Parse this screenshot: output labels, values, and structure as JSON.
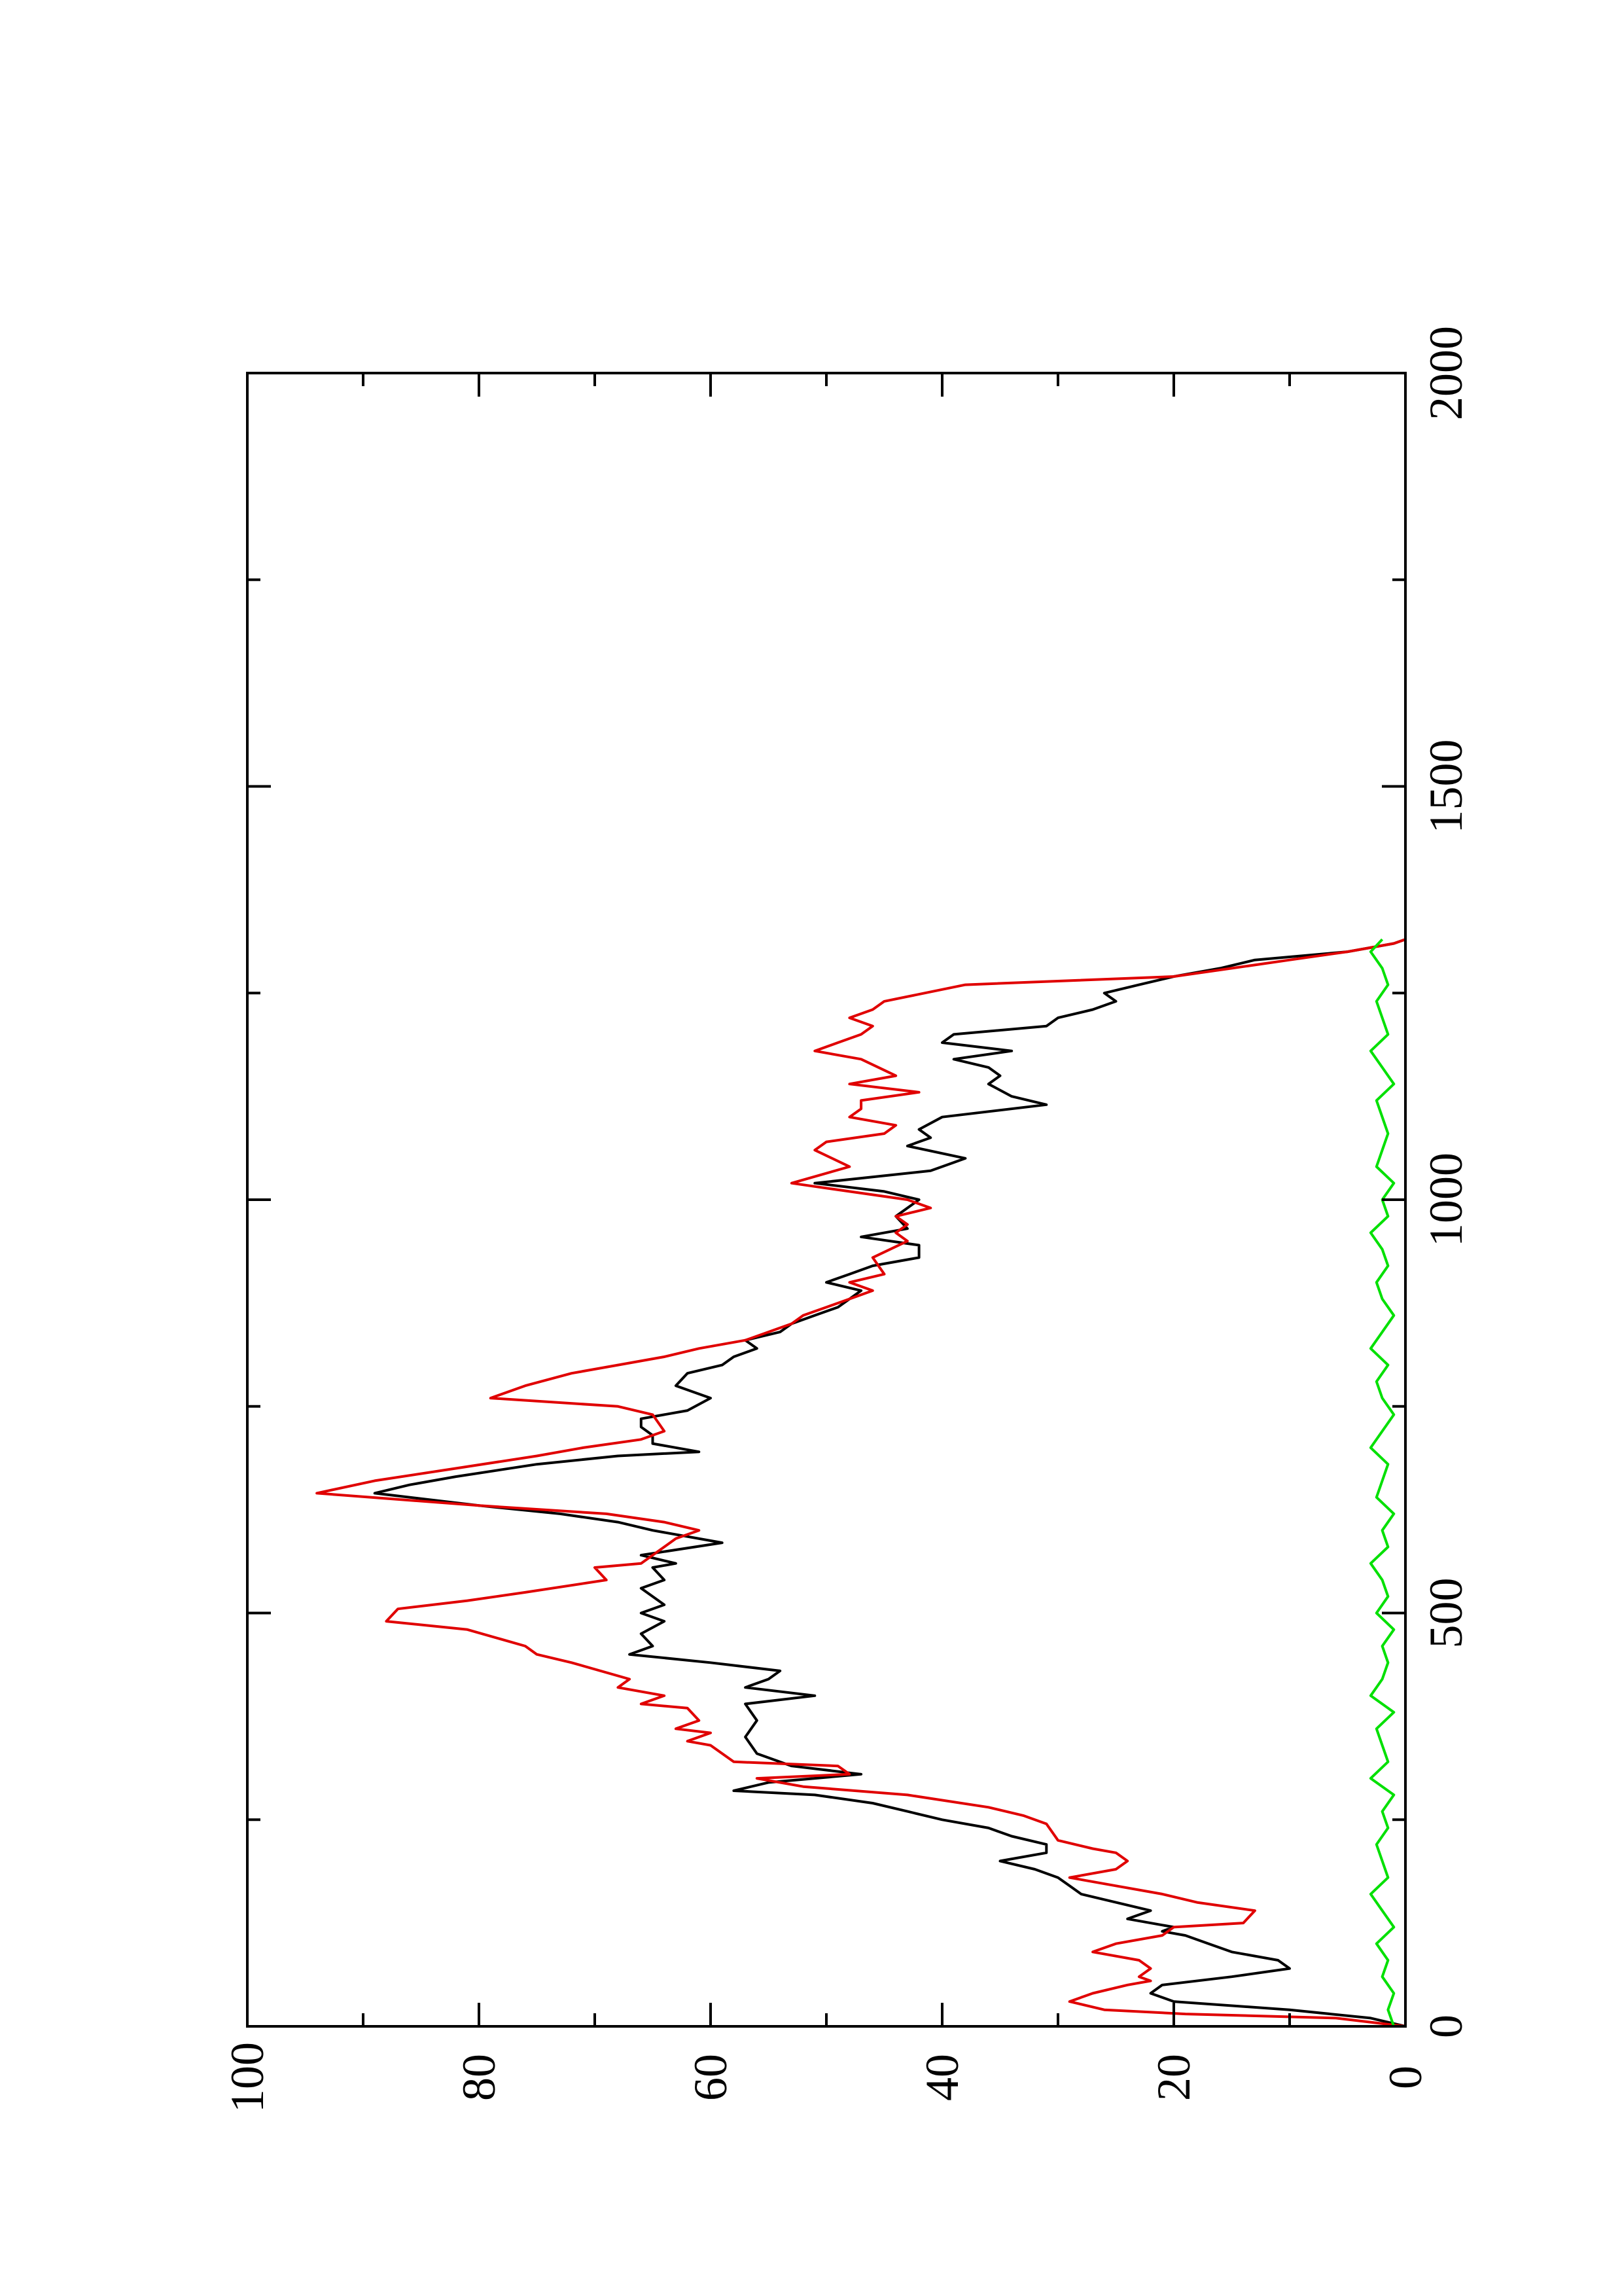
{
  "chart_data": {
    "type": "line",
    "orientation": "rotated-90-ccw",
    "title": "",
    "xlabel": "",
    "ylabel": "",
    "xlim": [
      0,
      2000
    ],
    "ylim": [
      0,
      100
    ],
    "x_ticks": [
      "0",
      "500",
      "1000",
      "1500",
      "2000"
    ],
    "y_ticks": [
      "0",
      "20",
      "40",
      "60",
      "80",
      "100"
    ],
    "grid": false,
    "legend": "none",
    "series": [
      {
        "color": "#000000",
        "points": [
          [
            0,
            0
          ],
          [
            10,
            3
          ],
          [
            20,
            10
          ],
          [
            30,
            20
          ],
          [
            40,
            22
          ],
          [
            50,
            21
          ],
          [
            60,
            15
          ],
          [
            70,
            10
          ],
          [
            80,
            11
          ],
          [
            90,
            15
          ],
          [
            100,
            17
          ],
          [
            110,
            19
          ],
          [
            115,
            21
          ],
          [
            120,
            20
          ],
          [
            130,
            24
          ],
          [
            140,
            22
          ],
          [
            150,
            25
          ],
          [
            160,
            28
          ],
          [
            170,
            29
          ],
          [
            180,
            30
          ],
          [
            190,
            32
          ],
          [
            200,
            35
          ],
          [
            210,
            31
          ],
          [
            220,
            31
          ],
          [
            230,
            34
          ],
          [
            240,
            36
          ],
          [
            250,
            40
          ],
          [
            260,
            43
          ],
          [
            270,
            46
          ],
          [
            280,
            51
          ],
          [
            285,
            58
          ],
          [
            295,
            55
          ],
          [
            305,
            47
          ],
          [
            315,
            53
          ],
          [
            330,
            56
          ],
          [
            350,
            57
          ],
          [
            370,
            56
          ],
          [
            390,
            57
          ],
          [
            400,
            51
          ],
          [
            410,
            57
          ],
          [
            420,
            55
          ],
          [
            430,
            54
          ],
          [
            440,
            60
          ],
          [
            450,
            67
          ],
          [
            460,
            65
          ],
          [
            475,
            66
          ],
          [
            490,
            64
          ],
          [
            500,
            66
          ],
          [
            510,
            64
          ],
          [
            520,
            65
          ],
          [
            530,
            66
          ],
          [
            540,
            64
          ],
          [
            555,
            65
          ],
          [
            560,
            63
          ],
          [
            570,
            66
          ],
          [
            585,
            59
          ],
          [
            600,
            65
          ],
          [
            610,
            68
          ],
          [
            620,
            73
          ],
          [
            630,
            80
          ],
          [
            645,
            89
          ],
          [
            655,
            86
          ],
          [
            665,
            82
          ],
          [
            680,
            75
          ],
          [
            690,
            68
          ],
          [
            695,
            61
          ],
          [
            705,
            65
          ],
          [
            715,
            65
          ],
          [
            725,
            66
          ],
          [
            735,
            66
          ],
          [
            745,
            62
          ],
          [
            760,
            60
          ],
          [
            775,
            63
          ],
          [
            790,
            62
          ],
          [
            800,
            59
          ],
          [
            810,
            58
          ],
          [
            820,
            56
          ],
          [
            830,
            57
          ],
          [
            840,
            54
          ],
          [
            850,
            53
          ],
          [
            860,
            51
          ],
          [
            870,
            49
          ],
          [
            880,
            48
          ],
          [
            890,
            47
          ],
          [
            900,
            50
          ],
          [
            910,
            48
          ],
          [
            920,
            46
          ],
          [
            930,
            42
          ],
          [
            945,
            42
          ],
          [
            955,
            47
          ],
          [
            965,
            43
          ],
          [
            980,
            44
          ],
          [
            990,
            43
          ],
          [
            1000,
            42
          ],
          [
            1010,
            45
          ],
          [
            1020,
            51
          ],
          [
            1035,
            41
          ],
          [
            1050,
            38
          ],
          [
            1065,
            43
          ],
          [
            1075,
            41
          ],
          [
            1085,
            42
          ],
          [
            1100,
            40
          ],
          [
            1115,
            31
          ],
          [
            1125,
            34
          ],
          [
            1140,
            36
          ],
          [
            1150,
            35
          ],
          [
            1160,
            36
          ],
          [
            1170,
            39
          ],
          [
            1180,
            34
          ],
          [
            1190,
            40
          ],
          [
            1200,
            39
          ],
          [
            1210,
            31
          ],
          [
            1220,
            30
          ],
          [
            1230,
            27
          ],
          [
            1240,
            25
          ],
          [
            1250,
            26
          ],
          [
            1260,
            23
          ],
          [
            1270,
            20
          ],
          [
            1280,
            16
          ],
          [
            1290,
            13
          ],
          [
            1300,
            5
          ],
          [
            1310,
            1
          ],
          [
            1315,
            0
          ]
        ]
      },
      {
        "color": "#e00000",
        "points": [
          [
            0,
            0
          ],
          [
            10,
            6
          ],
          [
            15,
            19
          ],
          [
            20,
            26
          ],
          [
            30,
            29
          ],
          [
            40,
            27
          ],
          [
            50,
            24
          ],
          [
            55,
            22
          ],
          [
            60,
            23
          ],
          [
            70,
            22
          ],
          [
            80,
            23
          ],
          [
            90,
            27
          ],
          [
            100,
            25
          ],
          [
            110,
            21
          ],
          [
            120,
            20
          ],
          [
            125,
            14
          ],
          [
            140,
            13
          ],
          [
            150,
            18
          ],
          [
            160,
            21
          ],
          [
            170,
            25
          ],
          [
            180,
            29
          ],
          [
            190,
            25
          ],
          [
            200,
            24
          ],
          [
            210,
            25
          ],
          [
            215,
            27
          ],
          [
            225,
            30
          ],
          [
            245,
            31
          ],
          [
            255,
            33
          ],
          [
            265,
            36
          ],
          [
            280,
            43
          ],
          [
            290,
            52
          ],
          [
            300,
            56
          ],
          [
            305,
            48
          ],
          [
            315,
            49
          ],
          [
            320,
            58
          ],
          [
            340,
            60
          ],
          [
            345,
            62
          ],
          [
            355,
            60
          ],
          [
            360,
            63
          ],
          [
            370,
            61
          ],
          [
            385,
            62
          ],
          [
            390,
            66
          ],
          [
            400,
            64
          ],
          [
            410,
            68
          ],
          [
            420,
            67
          ],
          [
            440,
            72
          ],
          [
            450,
            75
          ],
          [
            460,
            76
          ],
          [
            480,
            81
          ],
          [
            490,
            88
          ],
          [
            505,
            87
          ],
          [
            515,
            81
          ],
          [
            525,
            76
          ],
          [
            540,
            69
          ],
          [
            555,
            70
          ],
          [
            560,
            66
          ],
          [
            580,
            64
          ],
          [
            590,
            63
          ],
          [
            600,
            61
          ],
          [
            610,
            64
          ],
          [
            620,
            69
          ],
          [
            630,
            80
          ],
          [
            645,
            94
          ],
          [
            660,
            89
          ],
          [
            675,
            82
          ],
          [
            690,
            75
          ],
          [
            700,
            71
          ],
          [
            710,
            66
          ],
          [
            720,
            64
          ],
          [
            740,
            65
          ],
          [
            750,
            68
          ],
          [
            760,
            79
          ],
          [
            775,
            76
          ],
          [
            790,
            72
          ],
          [
            800,
            68
          ],
          [
            810,
            64
          ],
          [
            820,
            61
          ],
          [
            830,
            57
          ],
          [
            840,
            55
          ],
          [
            850,
            53
          ],
          [
            860,
            52
          ],
          [
            870,
            50
          ],
          [
            880,
            48
          ],
          [
            890,
            46
          ],
          [
            900,
            48
          ],
          [
            910,
            45
          ],
          [
            930,
            46
          ],
          [
            950,
            43
          ],
          [
            960,
            44
          ],
          [
            970,
            43
          ],
          [
            980,
            44
          ],
          [
            990,
            41
          ],
          [
            1000,
            43
          ],
          [
            1010,
            48
          ],
          [
            1020,
            53
          ],
          [
            1040,
            48
          ],
          [
            1060,
            51
          ],
          [
            1070,
            50
          ],
          [
            1080,
            45
          ],
          [
            1090,
            44
          ],
          [
            1100,
            48
          ],
          [
            1110,
            47
          ],
          [
            1120,
            47
          ],
          [
            1130,
            42
          ],
          [
            1140,
            48
          ],
          [
            1150,
            44
          ],
          [
            1170,
            47
          ],
          [
            1180,
            51
          ],
          [
            1190,
            49
          ],
          [
            1200,
            47
          ],
          [
            1210,
            46
          ],
          [
            1220,
            48
          ],
          [
            1230,
            46
          ],
          [
            1240,
            45
          ],
          [
            1260,
            38
          ],
          [
            1270,
            20
          ],
          [
            1280,
            15
          ],
          [
            1290,
            10
          ],
          [
            1300,
            5
          ],
          [
            1310,
            1
          ],
          [
            1315,
            0
          ]
        ]
      },
      {
        "color": "#00e000",
        "points": [
          [
            0,
            1
          ],
          [
            20,
            1.5
          ],
          [
            40,
            1
          ],
          [
            60,
            2
          ],
          [
            80,
            1.5
          ],
          [
            100,
            2.5
          ],
          [
            120,
            1
          ],
          [
            140,
            2
          ],
          [
            160,
            3
          ],
          [
            180,
            1.5
          ],
          [
            200,
            2
          ],
          [
            220,
            2.5
          ],
          [
            240,
            1.5
          ],
          [
            260,
            2
          ],
          [
            280,
            1
          ],
          [
            300,
            3
          ],
          [
            320,
            1.5
          ],
          [
            340,
            2
          ],
          [
            360,
            2.5
          ],
          [
            380,
            1
          ],
          [
            400,
            3
          ],
          [
            420,
            2
          ],
          [
            440,
            1.5
          ],
          [
            460,
            2
          ],
          [
            480,
            1
          ],
          [
            500,
            2.5
          ],
          [
            520,
            1.5
          ],
          [
            540,
            2
          ],
          [
            560,
            3
          ],
          [
            580,
            1.5
          ],
          [
            600,
            2
          ],
          [
            620,
            1
          ],
          [
            640,
            2.5
          ],
          [
            660,
            2
          ],
          [
            680,
            1.5
          ],
          [
            700,
            3
          ],
          [
            720,
            2
          ],
          [
            740,
            1
          ],
          [
            760,
            2
          ],
          [
            780,
            2.5
          ],
          [
            800,
            1.5
          ],
          [
            820,
            3
          ],
          [
            840,
            2
          ],
          [
            860,
            1
          ],
          [
            880,
            2
          ],
          [
            900,
            2.5
          ],
          [
            920,
            1.5
          ],
          [
            940,
            2
          ],
          [
            960,
            3
          ],
          [
            980,
            1.5
          ],
          [
            1000,
            2
          ],
          [
            1020,
            1
          ],
          [
            1040,
            2.5
          ],
          [
            1060,
            2
          ],
          [
            1080,
            1.5
          ],
          [
            1100,
            2
          ],
          [
            1120,
            2.5
          ],
          [
            1140,
            1
          ],
          [
            1160,
            2
          ],
          [
            1180,
            3
          ],
          [
            1200,
            1.5
          ],
          [
            1220,
            2
          ],
          [
            1240,
            2.5
          ],
          [
            1260,
            1.5
          ],
          [
            1280,
            2
          ],
          [
            1300,
            3
          ],
          [
            1315,
            2
          ]
        ]
      }
    ]
  }
}
